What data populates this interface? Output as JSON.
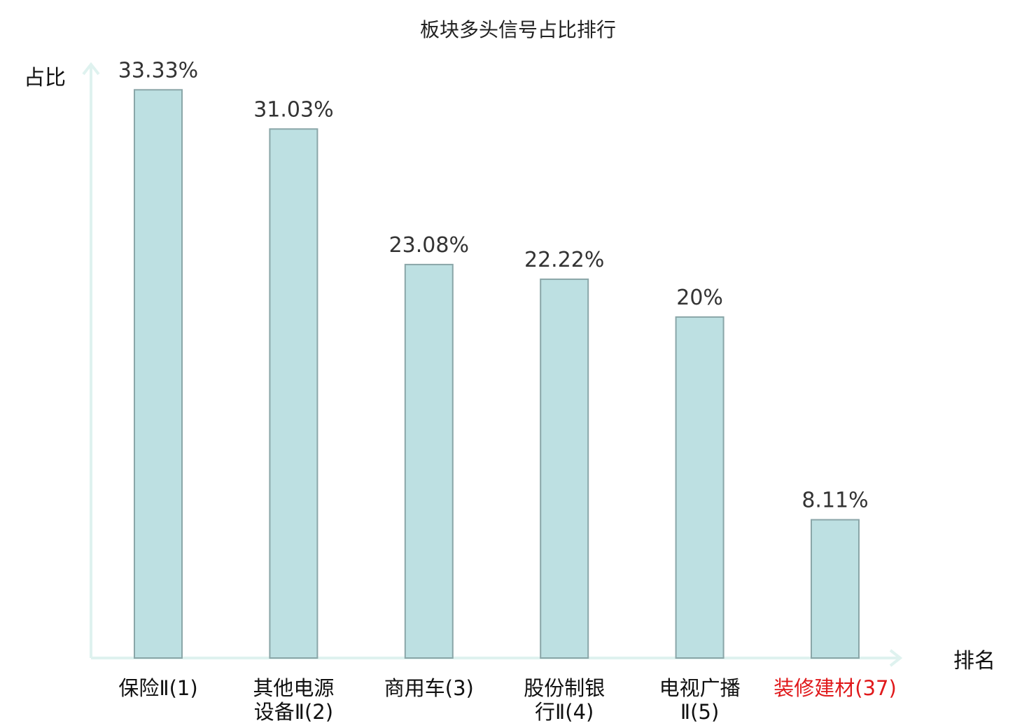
{
  "chart_data": {
    "type": "bar",
    "title": "板块多头信号占比排行",
    "ylabel": "占比",
    "xlabel": "排名",
    "ylim": [
      0,
      34
    ],
    "grid": false,
    "categories": [
      {
        "name": "保险Ⅱ",
        "rank": "(1)",
        "lines": [
          "保险Ⅱ(1)"
        ],
        "highlight": false
      },
      {
        "name": "其他电源设备Ⅱ",
        "rank": "(2)",
        "lines": [
          "其他电源",
          "设备Ⅱ(2)"
        ],
        "highlight": false
      },
      {
        "name": "商用车",
        "rank": "(3)",
        "lines": [
          "商用车(3)"
        ],
        "highlight": false
      },
      {
        "name": "股份制银行Ⅱ",
        "rank": "(4)",
        "lines": [
          "股份制银",
          "行Ⅱ(4)"
        ],
        "highlight": false
      },
      {
        "name": "电视广播Ⅱ",
        "rank": "(5)",
        "lines": [
          "电视广播",
          "Ⅱ(5)"
        ],
        "highlight": false
      },
      {
        "name": "装修建材",
        "rank": "(37)",
        "lines": [
          "装修建材(37)"
        ],
        "highlight": true
      }
    ],
    "values": [
      33.33,
      31.03,
      23.08,
      22.22,
      20,
      8.11
    ],
    "value_labels": [
      "33.33%",
      "31.03%",
      "23.08%",
      "22.22%",
      "20%",
      "8.11%"
    ],
    "colors": {
      "bar_fill": "#bde0e2",
      "bar_stroke": "#8aa6a8",
      "axis": "#dff2ef",
      "highlight_text": "#e0191b"
    }
  }
}
